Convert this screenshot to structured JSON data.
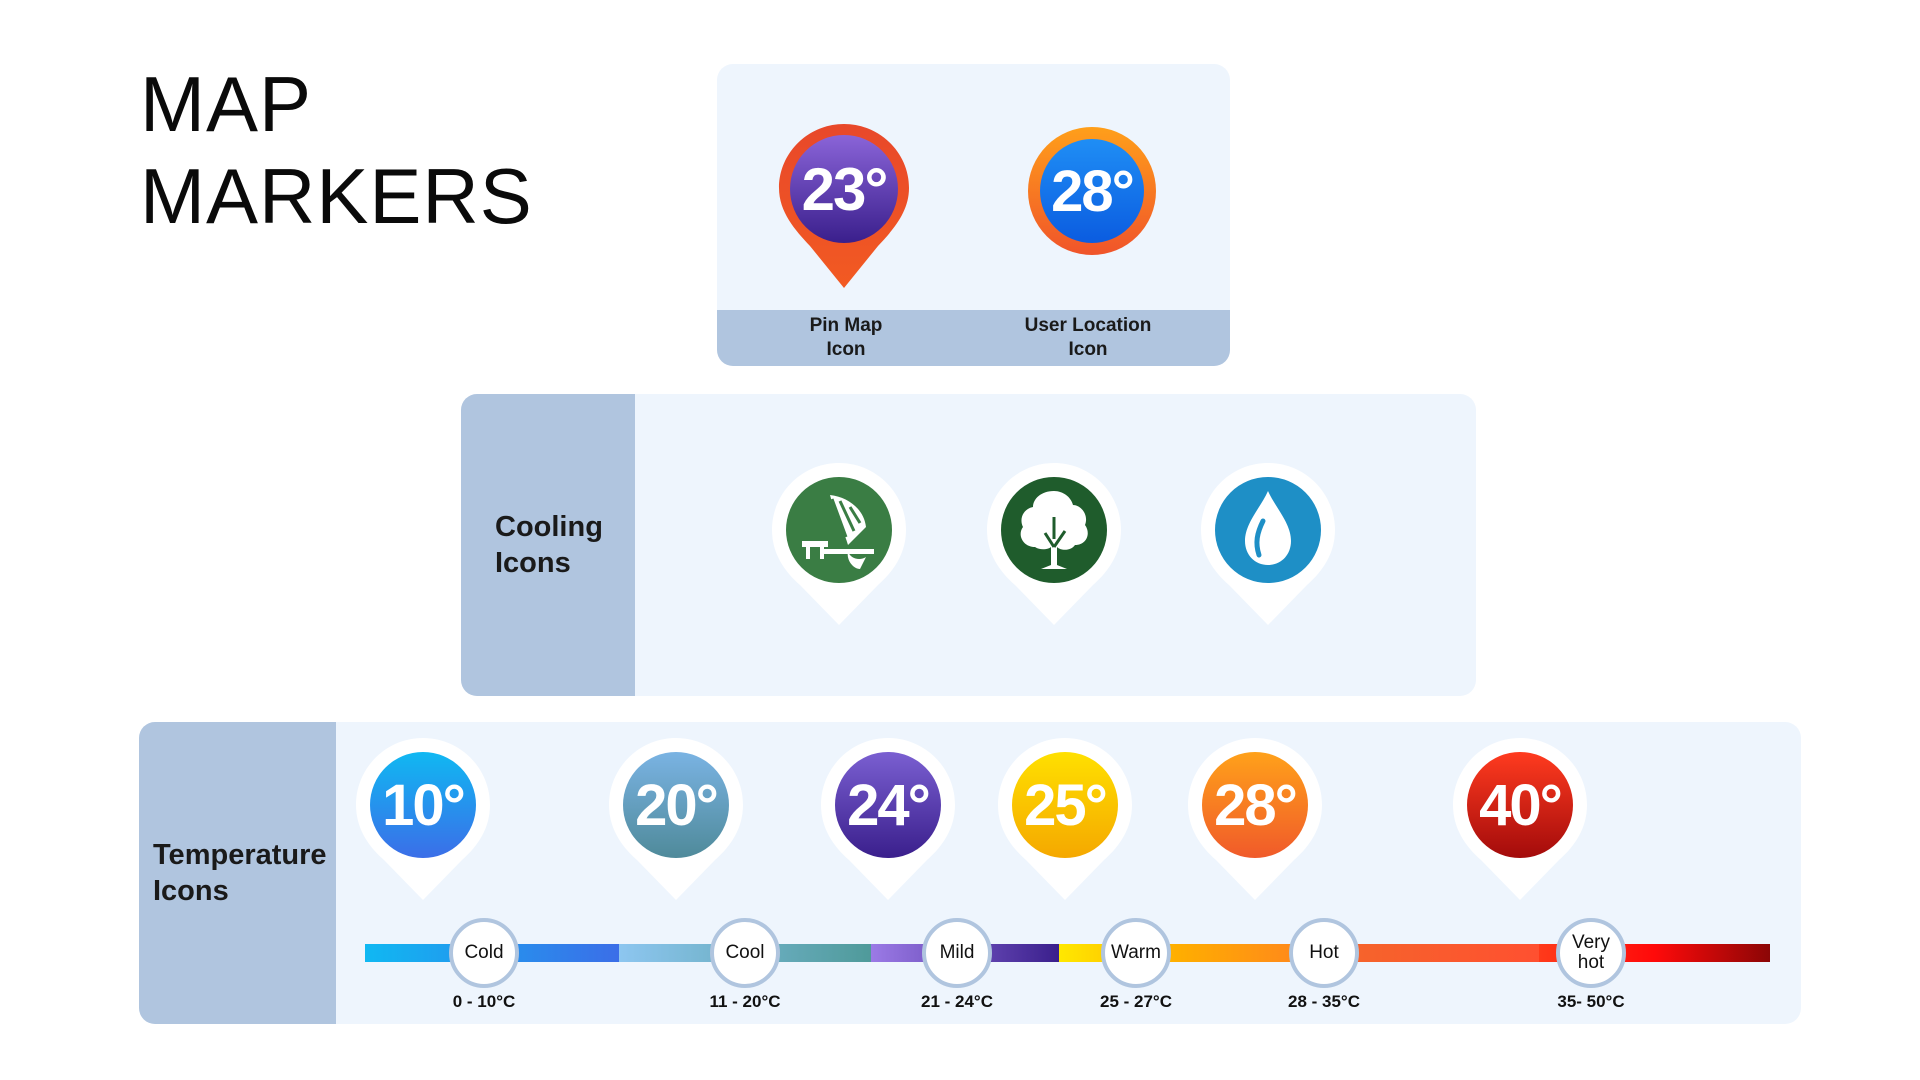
{
  "title": {
    "line1": "MAP",
    "line2": "MARKERS"
  },
  "top_panel": {
    "pin_temp": "23°",
    "location_temp": "28°",
    "pin_caption": {
      "line1": "Pin Map",
      "line2": "Icon"
    },
    "location_caption": {
      "line1": "User Location",
      "line2": "Icon"
    }
  },
  "cooling_panel": {
    "label": {
      "line1": "Cooling",
      "line2": "Icons"
    },
    "icons": [
      {
        "name": "shade-umbrella-bench-icon",
        "color": "#3a7d44"
      },
      {
        "name": "tree-icon",
        "color": "#1f5c2c"
      },
      {
        "name": "water-drop-icon",
        "color": "#1e8fc6"
      }
    ]
  },
  "temperature_panel": {
    "label": {
      "line1": "Temperature",
      "line2": "Icons"
    },
    "markers": [
      {
        "temp": "10°",
        "gradient": [
          "#10b8f2",
          "#3b6ee8"
        ]
      },
      {
        "temp": "20°",
        "gradient": [
          "#7ab3e3",
          "#4f8a9a"
        ]
      },
      {
        "temp": "24°",
        "gradient": [
          "#7a5fd1",
          "#3a1f8c"
        ]
      },
      {
        "temp": "25°",
        "gradient": [
          "#ffe000",
          "#f5a800"
        ]
      },
      {
        "temp": "28°",
        "gradient": [
          "#ffa11a",
          "#f05a2a"
        ]
      },
      {
        "temp": "40°",
        "gradient": [
          "#ff3b1f",
          "#a30b0b"
        ]
      }
    ],
    "scale": [
      {
        "label_line1": "Cold",
        "label_line2": "",
        "range": "0 - 10°C"
      },
      {
        "label_line1": "Cool",
        "label_line2": "",
        "range": "11 - 20°C"
      },
      {
        "label_line1": "Mild",
        "label_line2": "",
        "range": "21 - 24°C"
      },
      {
        "label_line1": "Warm",
        "label_line2": "",
        "range": "25 - 27°C"
      },
      {
        "label_line1": "Hot",
        "label_line2": "",
        "range": "28 - 35°C"
      },
      {
        "label_line1": "Very",
        "label_line2": "hot",
        "range": "35- 50°C"
      }
    ]
  }
}
